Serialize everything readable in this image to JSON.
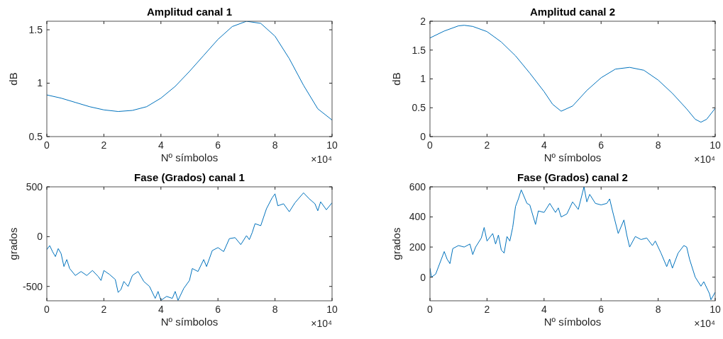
{
  "chart_data": [
    {
      "type": "line",
      "title": "Amplitud canal 1",
      "xlabel": "Nº símbolos",
      "ylabel": "dB",
      "annotations": [
        "×10⁴"
      ],
      "xlim": [
        0,
        10
      ],
      "ylim": [
        0.5,
        1.58
      ],
      "xticks": [
        0,
        2,
        4,
        6,
        8,
        10
      ],
      "yticks": [
        0.5,
        1,
        1.5
      ],
      "series": [
        {
          "color": "#0072bd",
          "x": [
            0,
            0.5,
            1,
            1.5,
            2,
            2.5,
            3,
            3.5,
            4,
            4.5,
            5,
            5.5,
            6,
            6.5,
            7,
            7.5,
            8,
            8.5,
            9,
            9.5,
            10
          ],
          "values": [
            0.89,
            0.86,
            0.82,
            0.78,
            0.75,
            0.735,
            0.745,
            0.78,
            0.86,
            0.97,
            1.11,
            1.26,
            1.41,
            1.53,
            1.58,
            1.56,
            1.44,
            1.23,
            0.98,
            0.76,
            0.655
          ]
        }
      ]
    },
    {
      "type": "line",
      "title": "Amplitud canal 2",
      "xlabel": "Nº símbolos",
      "ylabel": "dB",
      "annotations": [
        "×10⁴"
      ],
      "xlim": [
        0,
        10
      ],
      "ylim": [
        0,
        2
      ],
      "xticks": [
        0,
        2,
        4,
        6,
        8,
        10
      ],
      "yticks": [
        0,
        0.5,
        1,
        1.5,
        2
      ],
      "series": [
        {
          "color": "#0072bd",
          "x": [
            0,
            0.5,
            1,
            1.2,
            1.5,
            2,
            2.5,
            3,
            3.5,
            4,
            4.3,
            4.6,
            5,
            5.5,
            6,
            6.5,
            7,
            7.5,
            8,
            8.5,
            9,
            9.3,
            9.5,
            9.7,
            10
          ],
          "values": [
            1.71,
            1.83,
            1.92,
            1.93,
            1.91,
            1.82,
            1.64,
            1.4,
            1.1,
            0.78,
            0.56,
            0.44,
            0.53,
            0.8,
            1.02,
            1.17,
            1.2,
            1.15,
            0.98,
            0.75,
            0.48,
            0.3,
            0.25,
            0.3,
            0.49
          ]
        }
      ]
    },
    {
      "type": "line",
      "title": "Fase (Grados) canal 1",
      "xlabel": "Nº símbolos",
      "ylabel": "grados",
      "annotations": [
        "×10⁴"
      ],
      "xlim": [
        0,
        10
      ],
      "ylim": [
        -644,
        500
      ],
      "xticks": [
        0,
        2,
        4,
        6,
        8,
        10
      ],
      "yticks": [
        -500,
        0,
        500
      ],
      "series": [
        {
          "color": "#0072bd",
          "x": [
            0,
            0.1,
            0.2,
            0.3,
            0.4,
            0.5,
            0.6,
            0.7,
            0.8,
            1,
            1.2,
            1.4,
            1.6,
            1.8,
            1.9,
            2,
            2.2,
            2.4,
            2.5,
            2.6,
            2.7,
            2.85,
            3,
            3.2,
            3.4,
            3.6,
            3.8,
            3.9,
            4,
            4.2,
            4.4,
            4.5,
            4.6,
            4.8,
            5,
            5.1,
            5.3,
            5.5,
            5.6,
            5.8,
            6,
            6.2,
            6.4,
            6.6,
            6.8,
            7,
            7.1,
            7.2,
            7.3,
            7.5,
            7.7,
            7.9,
            8,
            8.1,
            8.3,
            8.5,
            8.7,
            9,
            9.2,
            9.4,
            9.5,
            9.6,
            9.8,
            10
          ],
          "values": [
            -130,
            -90,
            -150,
            -200,
            -120,
            -170,
            -300,
            -230,
            -320,
            -390,
            -350,
            -390,
            -340,
            -400,
            -440,
            -340,
            -380,
            -430,
            -560,
            -530,
            -450,
            -500,
            -390,
            -350,
            -450,
            -500,
            -620,
            -550,
            -640,
            -600,
            -620,
            -550,
            -640,
            -520,
            -440,
            -320,
            -350,
            -230,
            -300,
            -140,
            -110,
            -150,
            -20,
            -10,
            -80,
            10,
            -30,
            40,
            130,
            110,
            280,
            390,
            430,
            310,
            330,
            250,
            340,
            440,
            380,
            330,
            260,
            350,
            270,
            340
          ]
        }
      ]
    },
    {
      "type": "line",
      "title": "Fase (Grados) canal 2",
      "xlabel": "Nº símbolos",
      "ylabel": "grados",
      "annotations": [
        "×10⁴"
      ],
      "xlim": [
        0,
        10
      ],
      "ylim": [
        -157,
        600
      ],
      "xticks": [
        0,
        2,
        4,
        6,
        8,
        10
      ],
      "yticks": [
        0,
        200,
        400,
        600
      ],
      "series": [
        {
          "color": "#0072bd",
          "x": [
            0,
            0.05,
            0.2,
            0.4,
            0.5,
            0.6,
            0.7,
            0.8,
            1,
            1.2,
            1.4,
            1.5,
            1.6,
            1.8,
            1.9,
            2,
            2.2,
            2.3,
            2.4,
            2.5,
            2.6,
            2.7,
            2.8,
            2.9,
            3,
            3.1,
            3.2,
            3.4,
            3.5,
            3.7,
            3.8,
            4,
            4.2,
            4.4,
            4.5,
            4.6,
            4.8,
            5,
            5.2,
            5.4,
            5.5,
            5.6,
            5.8,
            6,
            6.2,
            6.3,
            6.4,
            6.6,
            6.8,
            6.9,
            7,
            7.2,
            7.4,
            7.6,
            7.8,
            7.9,
            8.1,
            8.3,
            8.4,
            8.5,
            8.7,
            8.9,
            9,
            9.1,
            9.3,
            9.5,
            9.6,
            9.8,
            9.85,
            10
          ],
          "values": [
            60,
            0,
            20,
            120,
            170,
            120,
            90,
            190,
            210,
            200,
            220,
            150,
            200,
            260,
            330,
            240,
            290,
            220,
            280,
            180,
            160,
            270,
            240,
            330,
            470,
            520,
            580,
            490,
            480,
            350,
            440,
            430,
            490,
            430,
            460,
            400,
            420,
            500,
            450,
            600,
            500,
            550,
            490,
            480,
            490,
            520,
            440,
            290,
            380,
            280,
            200,
            270,
            250,
            260,
            210,
            240,
            160,
            70,
            120,
            60,
            160,
            210,
            200,
            120,
            0,
            -60,
            -30,
            -110,
            -150,
            -100
          ]
        }
      ]
    }
  ]
}
